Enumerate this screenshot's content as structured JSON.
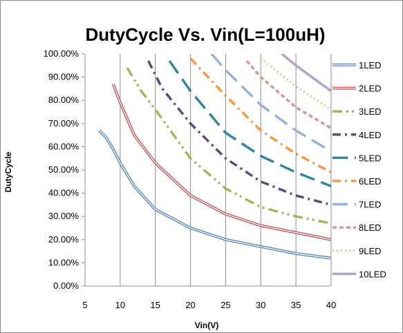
{
  "chart_data": {
    "type": "line",
    "title": "DutyCycle Vs. Vin(L=100uH)",
    "xlabel": "Vin(V)",
    "ylabel": "DutyCycle",
    "xlim": [
      5,
      40
    ],
    "ylim": [
      0,
      1
    ],
    "x_ticks": [
      "5",
      "10",
      "15",
      "20",
      "25",
      "30",
      "35",
      "40"
    ],
    "y_ticks": [
      "0.00%",
      "10.00%",
      "20.00%",
      "30.00%",
      "40.00%",
      "50.00%",
      "60.00%",
      "70.00%",
      "80.00%",
      "90.00%",
      "100.00%"
    ],
    "grid": "vertical",
    "legend_position": "right",
    "series": [
      {
        "name": "1LED",
        "color": "#4f81bd",
        "style": "double",
        "x": [
          7,
          8,
          9,
          10,
          12,
          15,
          20,
          25,
          30,
          35,
          40
        ],
        "y": [
          0.67,
          0.64,
          0.59,
          0.53,
          0.43,
          0.33,
          0.25,
          0.2,
          0.17,
          0.14,
          0.12
        ]
      },
      {
        "name": "2LED",
        "color": "#c0504d",
        "style": "double",
        "x": [
          9,
          10,
          12,
          15,
          20,
          25,
          30,
          35,
          40
        ],
        "y": [
          0.87,
          0.79,
          0.65,
          0.53,
          0.39,
          0.31,
          0.26,
          0.23,
          0.2
        ]
      },
      {
        "name": "3LED",
        "color": "#9bbb59",
        "style": "dashdotdot",
        "x": [
          11,
          13,
          15,
          20,
          25,
          30,
          35,
          40
        ],
        "y": [
          0.94,
          0.84,
          0.76,
          0.55,
          0.42,
          0.34,
          0.3,
          0.27
        ]
      },
      {
        "name": "4LED",
        "color": "#604a7b",
        "style": "dashdot",
        "x": [
          14,
          16,
          20,
          25,
          30,
          35,
          40
        ],
        "y": [
          0.97,
          0.85,
          0.7,
          0.55,
          0.45,
          0.39,
          0.35
        ]
      },
      {
        "name": "5LED",
        "color": "#31859c",
        "style": "longdash",
        "x": [
          17,
          20,
          25,
          30,
          35,
          40
        ],
        "y": [
          0.97,
          0.84,
          0.66,
          0.56,
          0.49,
          0.43
        ]
      },
      {
        "name": "6LED",
        "color": "#f79646",
        "style": "dashdot",
        "x": [
          20,
          25,
          30,
          35,
          40
        ],
        "y": [
          0.98,
          0.82,
          0.67,
          0.57,
          0.49
        ]
      },
      {
        "name": "7LED",
        "color": "#95b3d7",
        "style": "longdash",
        "x": [
          23,
          25,
          30,
          35,
          40
        ],
        "y": [
          1.0,
          0.93,
          0.78,
          0.67,
          0.58
        ]
      },
      {
        "name": "8LED",
        "color": "#d99694",
        "style": "shortdash",
        "x": [
          28,
          30,
          35,
          40
        ],
        "y": [
          0.97,
          0.9,
          0.77,
          0.68
        ]
      },
      {
        "name": "9LED",
        "color": "#c3d69b",
        "style": "dotted",
        "x": [
          30,
          35,
          40
        ],
        "y": [
          0.98,
          0.86,
          0.76
        ]
      },
      {
        "name": "10LED",
        "color": "#b3a2c7",
        "style": "solid",
        "x": [
          33,
          35,
          40
        ],
        "y": [
          1.0,
          0.95,
          0.84
        ]
      }
    ]
  }
}
